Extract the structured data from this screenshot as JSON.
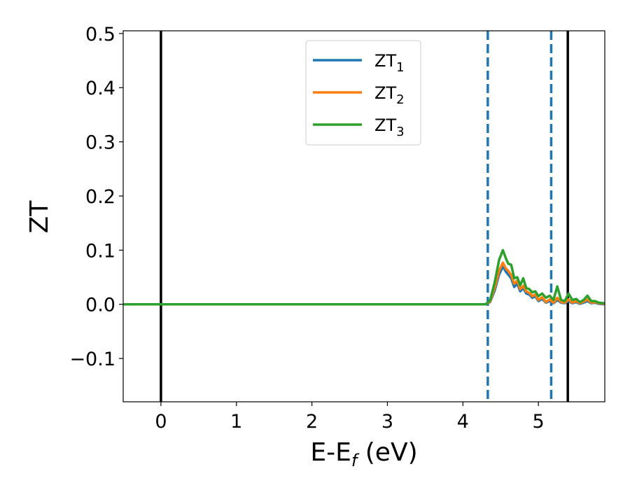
{
  "chart_data": {
    "type": "line",
    "xlabel": "E-E",
    "xlabel_sub": "f",
    "xlabel_unit": " (eV)",
    "ylabel": "ZT",
    "xlim": [
      -0.5,
      5.88
    ],
    "ylim": [
      -0.18,
      0.505
    ],
    "xticks": [
      0,
      1,
      2,
      3,
      4,
      5
    ],
    "yticks": [
      -0.1,
      0.0,
      0.1,
      0.2,
      0.3,
      0.4,
      0.5
    ],
    "ytick_labels": [
      "−0.1",
      "0.0",
      "0.1",
      "0.2",
      "0.3",
      "0.4",
      "0.5"
    ],
    "grid": false,
    "legend_position": "top-center",
    "series": [
      {
        "name": "ZT",
        "name_sub": "1",
        "color": "#1f77b4",
        "x": [
          -0.5,
          4.3,
          4.36,
          4.42,
          4.48,
          4.53,
          4.57,
          4.6,
          4.64,
          4.68,
          4.72,
          4.76,
          4.8,
          4.84,
          4.88,
          4.92,
          4.96,
          5.0,
          5.05,
          5.1,
          5.15,
          5.2,
          5.25,
          5.3,
          5.35,
          5.4,
          5.45,
          5.5,
          5.55,
          5.6,
          5.65,
          5.7,
          5.75,
          5.8,
          5.88
        ],
        "y": [
          0.0,
          0.0,
          0.004,
          0.025,
          0.055,
          0.07,
          0.06,
          0.055,
          0.048,
          0.032,
          0.038,
          0.024,
          0.03,
          0.02,
          0.018,
          0.012,
          0.015,
          0.006,
          0.01,
          0.003,
          0.006,
          0.002,
          0.008,
          0.003,
          0.002,
          0.006,
          0.002,
          0.004,
          0.001,
          0.003,
          0.006,
          0.002,
          0.003,
          0.001,
          0.0
        ]
      },
      {
        "name": "ZT",
        "name_sub": "2",
        "color": "#ff7f0e",
        "x": [
          -0.5,
          4.3,
          4.36,
          4.42,
          4.48,
          4.53,
          4.57,
          4.6,
          4.64,
          4.68,
          4.72,
          4.76,
          4.8,
          4.84,
          4.88,
          4.92,
          4.96,
          5.0,
          5.05,
          5.1,
          5.15,
          5.2,
          5.25,
          5.3,
          5.35,
          5.4,
          5.45,
          5.5,
          5.55,
          5.6,
          5.65,
          5.7,
          5.75,
          5.8,
          5.88
        ],
        "y": [
          0.0,
          0.0,
          0.005,
          0.03,
          0.062,
          0.077,
          0.066,
          0.062,
          0.054,
          0.038,
          0.044,
          0.028,
          0.034,
          0.024,
          0.021,
          0.015,
          0.018,
          0.008,
          0.013,
          0.004,
          0.009,
          0.003,
          0.012,
          0.004,
          0.003,
          0.009,
          0.003,
          0.006,
          0.002,
          0.005,
          0.009,
          0.003,
          0.004,
          0.002,
          0.001
        ]
      },
      {
        "name": "ZT",
        "name_sub": "3",
        "color": "#2ca02c",
        "x": [
          -0.5,
          4.3,
          4.36,
          4.42,
          4.48,
          4.53,
          4.57,
          4.6,
          4.64,
          4.68,
          4.72,
          4.76,
          4.8,
          4.84,
          4.88,
          4.92,
          4.96,
          5.0,
          5.05,
          5.1,
          5.15,
          5.2,
          5.25,
          5.3,
          5.35,
          5.4,
          5.45,
          5.5,
          5.55,
          5.6,
          5.65,
          5.7,
          5.75,
          5.8,
          5.88
        ],
        "y": [
          0.0,
          0.0,
          0.007,
          0.04,
          0.082,
          0.1,
          0.085,
          0.075,
          0.073,
          0.048,
          0.05,
          0.035,
          0.048,
          0.03,
          0.028,
          0.022,
          0.024,
          0.015,
          0.02,
          0.012,
          0.016,
          0.008,
          0.033,
          0.008,
          0.006,
          0.02,
          0.008,
          0.01,
          0.004,
          0.008,
          0.016,
          0.006,
          0.006,
          0.003,
          0.002
        ]
      }
    ],
    "vlines": [
      {
        "x": 0.0,
        "style": "solid",
        "color": "#000000"
      },
      {
        "x": 4.33,
        "style": "dashed",
        "color": "#1f77b4"
      },
      {
        "x": 5.17,
        "style": "dashed",
        "color": "#1f77b4"
      },
      {
        "x": 5.39,
        "style": "solid",
        "color": "#000000"
      }
    ]
  }
}
